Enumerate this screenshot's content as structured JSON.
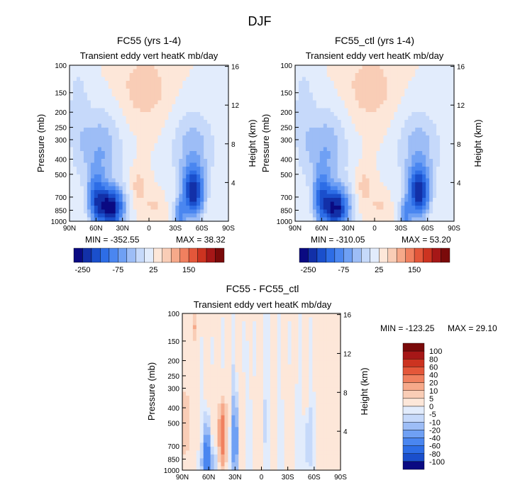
{
  "figure_title": "DJF",
  "colors": {
    "ref_scale": [
      "#0a0a82",
      "#1230a8",
      "#1a4fcc",
      "#2d6de6",
      "#4a86f0",
      "#6fa0f4",
      "#9dbdf6",
      "#c6d9fa",
      "#e2ecfc",
      "#fde7d9",
      "#f9cdb6",
      "#f6a98a",
      "#f0805f",
      "#e4573a",
      "#cc3320",
      "#a61717",
      "#7a0a0a"
    ],
    "diff_scale": [
      "#0a0a82",
      "#1230a8",
      "#1a4fcc",
      "#2d6de6",
      "#4a86f0",
      "#6fa0f4",
      "#9dbdf6",
      "#c6d9fa",
      "#e2ecfc",
      "#fde7d9",
      "#f9cdb6",
      "#f6a98a",
      "#f0805f",
      "#e4573a",
      "#cc3320",
      "#a61717",
      "#7a0a0a"
    ]
  },
  "chart_data": [
    {
      "id": "panel-fc55",
      "type": "heatmap",
      "title": "FC55 (yrs 1-4)",
      "subtitle": "Transient eddy vert heatK mb/day",
      "xlabel": "",
      "ylabel": "Pressure (mb)",
      "ylabel_right": "Height (km)",
      "x_ticks": [
        "90N",
        "60N",
        "30N",
        "0",
        "30S",
        "60S",
        "90S"
      ],
      "x_tick_values": [
        90,
        60,
        30,
        0,
        -30,
        -60,
        -90
      ],
      "y_ticks": [
        100,
        150,
        200,
        250,
        300,
        400,
        500,
        700,
        850,
        1000
      ],
      "y_ticks_right": [
        16,
        12,
        8,
        4
      ],
      "xlim": [
        90,
        -90
      ],
      "ylim": [
        1000,
        100
      ],
      "yscale": "log",
      "min_label": "MIN = -352.55",
      "max_label": "MAX = 38.32",
      "colorbar_labels": [
        "-250",
        "-75",
        "25",
        "150"
      ],
      "features": [
        {
          "name": "nh-cooling-core",
          "lat": 42,
          "p": 850,
          "value": -352.55
        },
        {
          "name": "sh-cooling-core",
          "lat": -52,
          "p": 600,
          "value": -200
        },
        {
          "name": "tropical-upper-warming",
          "lat": 0,
          "p": 150,
          "value": 10
        },
        {
          "name": "max-warming",
          "lat": 20,
          "p": 700,
          "value": 38.32
        }
      ]
    },
    {
      "id": "panel-fc55-ctl",
      "type": "heatmap",
      "title": "FC55_ctl (yrs 1-4)",
      "subtitle": "Transient eddy vert heatK mb/day",
      "xlabel": "",
      "ylabel": "Pressure (mb)",
      "ylabel_right": "Height (km)",
      "x_ticks": [
        "90N",
        "60N",
        "30N",
        "0",
        "30S",
        "60S",
        "90S"
      ],
      "x_tick_values": [
        90,
        60,
        30,
        0,
        -30,
        -60,
        -90
      ],
      "y_ticks": [
        100,
        150,
        200,
        250,
        300,
        400,
        500,
        700,
        850,
        1000
      ],
      "y_ticks_right": [
        16,
        12,
        8,
        4
      ],
      "xlim": [
        90,
        -90
      ],
      "ylim": [
        1000,
        100
      ],
      "yscale": "log",
      "min_label": "MIN = -310.05",
      "max_label": "MAX = 53.20",
      "colorbar_labels": [
        "-250",
        "-75",
        "25",
        "150"
      ],
      "features": [
        {
          "name": "nh-cooling-core",
          "lat": 42,
          "p": 850,
          "value": -310.05
        },
        {
          "name": "sh-cooling-core",
          "lat": -52,
          "p": 600,
          "value": -200
        },
        {
          "name": "tropical-upper-warming",
          "lat": 0,
          "p": 150,
          "value": 10
        },
        {
          "name": "max-warming",
          "lat": 20,
          "p": 700,
          "value": 53.2
        }
      ]
    },
    {
      "id": "panel-diff",
      "type": "heatmap",
      "title": "FC55 - FC55_ctl",
      "subtitle": "Transient eddy vert heatK mb/day",
      "xlabel": "",
      "ylabel": "Pressure (mb)",
      "ylabel_right": "Height (km)",
      "x_ticks": [
        "90N",
        "60N",
        "30N",
        "0",
        "30S",
        "60S",
        "90S"
      ],
      "x_tick_values": [
        90,
        60,
        30,
        0,
        -30,
        -60,
        -90
      ],
      "y_ticks": [
        100,
        150,
        200,
        250,
        300,
        400,
        500,
        700,
        850,
        1000
      ],
      "y_ticks_right": [
        16,
        12,
        8,
        4
      ],
      "xlim": [
        90,
        -90
      ],
      "ylim": [
        1000,
        100
      ],
      "yscale": "log",
      "min_label": "MIN = -123.25",
      "max_label": "MAX =  29.10",
      "colorbar_labels": [
        "100",
        "80",
        "60",
        "40",
        "20",
        "10",
        "5",
        "0",
        "-5",
        "-10",
        "-20",
        "-40",
        "-60",
        "-80",
        "-100"
      ],
      "features": [
        {
          "name": "warm-band-45N",
          "lat": 45,
          "p": 600,
          "value": 29.1
        },
        {
          "name": "warm-band-85N",
          "lat": 85,
          "p": 500,
          "value": 20
        },
        {
          "name": "cool-band-60N",
          "lat": 60,
          "p": 800,
          "value": -123.25
        },
        {
          "name": "cool-band-30N",
          "lat": 30,
          "p": 700,
          "value": -40
        }
      ]
    }
  ]
}
